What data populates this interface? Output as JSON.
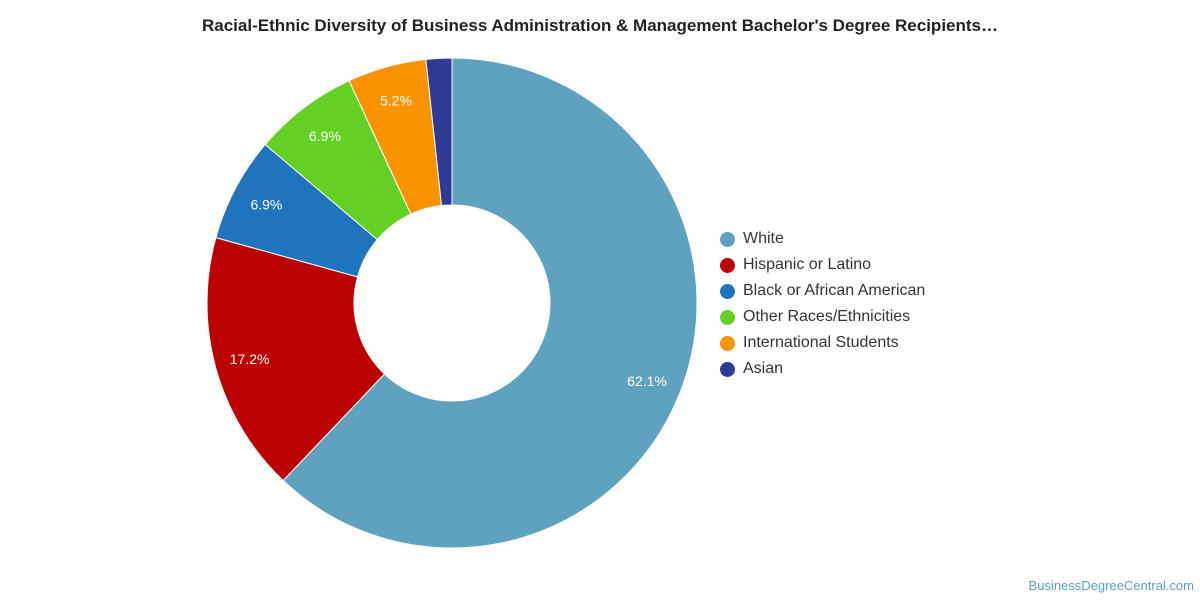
{
  "title": "Racial-Ethnic Diversity of Business Administration & Management Bachelor's Degree Recipients…",
  "watermark": "BusinessDegreeCentral.com",
  "chart_data": {
    "type": "pie",
    "subtype": "donut",
    "legend_position": "right",
    "slices": [
      {
        "label": "White",
        "value": 62.1,
        "display": "62.1%",
        "color": "#5ea2bf"
      },
      {
        "label": "Hispanic or Latino",
        "value": 17.2,
        "display": "17.2%",
        "color": "#bb0000"
      },
      {
        "label": "Black or African American",
        "value": 6.9,
        "display": "6.9%",
        "color": "#1f74bd"
      },
      {
        "label": "Other Races/Ethnicities",
        "value": 6.9,
        "display": "6.9%",
        "color": "#63d024"
      },
      {
        "label": "International Students",
        "value": 5.2,
        "display": "5.2%",
        "color": "#f99400"
      },
      {
        "label": "Asian",
        "value": 1.7,
        "display": "",
        "color": "#2d3a96"
      }
    ]
  }
}
